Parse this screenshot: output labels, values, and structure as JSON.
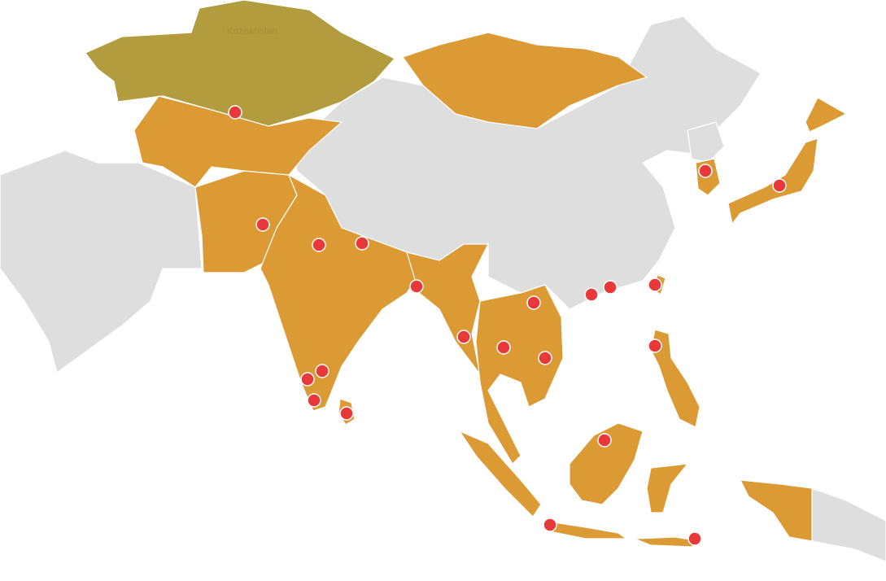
{
  "map": {
    "labels": {
      "kazakhstan": "Kazakhstan"
    },
    "colors": {
      "highlight": "#b39c3e",
      "included": "#dc9a34",
      "other": "#dedede",
      "marker": "#e8383a"
    },
    "marker_count": 22
  }
}
